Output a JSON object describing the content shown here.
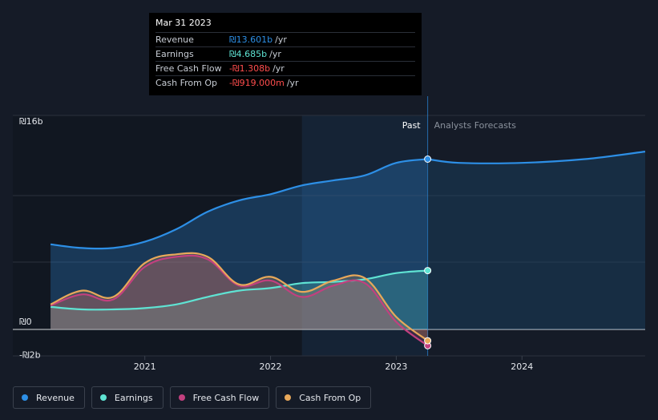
{
  "tooltip": {
    "date": "Mar 31 2023",
    "rows": [
      {
        "label": "Revenue",
        "value": "₪13.601b",
        "unit": "/yr",
        "color": "#2d8fe6"
      },
      {
        "label": "Earnings",
        "value": "₪4.685b",
        "unit": "/yr",
        "color": "#5fe3d3"
      },
      {
        "label": "Free Cash Flow",
        "value": "-₪1.308b",
        "unit": "/yr",
        "color": "#ff4d4d"
      },
      {
        "label": "Cash From Op",
        "value": "-₪919.000m",
        "unit": "/yr",
        "color": "#ff4d4d"
      }
    ]
  },
  "labels": {
    "past": "Past",
    "forecast": "Analysts Forecasts"
  },
  "legend": [
    {
      "label": "Revenue",
      "color": "#2d8fe6"
    },
    {
      "label": "Earnings",
      "color": "#5fe3d3"
    },
    {
      "label": "Free Cash Flow",
      "color": "#c2407f"
    },
    {
      "label": "Cash From Op",
      "color": "#e8a85a"
    }
  ],
  "chart_data": {
    "type": "line",
    "title": "",
    "xlabel": "",
    "ylabel": "",
    "ylim": [
      -2,
      16
    ],
    "yticks": [
      {
        "value": 16,
        "label": "₪16b"
      },
      {
        "value": 0,
        "label": "₪0"
      },
      {
        "value": -2,
        "label": "-₪2b"
      }
    ],
    "xticks": [
      {
        "value": 2021.0,
        "label": "2021"
      },
      {
        "value": 2022.0,
        "label": "2022"
      },
      {
        "value": 2023.0,
        "label": "2023"
      },
      {
        "value": 2024.0,
        "label": "2024"
      }
    ],
    "xlim": [
      2019.95,
      2024.98
    ],
    "past_end": 2023.25,
    "series": [
      {
        "name": "Revenue",
        "color": "#2d8fe6",
        "x": [
          2020.25,
          2020.5,
          2020.75,
          2021.0,
          2021.25,
          2021.5,
          2021.75,
          2022.0,
          2022.25,
          2022.5,
          2022.75,
          2023.0,
          2023.25
        ],
        "values": [
          6.8,
          6.5,
          6.5,
          7.0,
          8.0,
          9.4,
          10.3,
          10.8,
          11.5,
          11.9,
          12.3,
          13.3,
          13.6
        ],
        "forecast_x": [
          2023.25,
          2023.5,
          2024.0,
          2024.5,
          2024.98
        ],
        "forecast_values": [
          13.6,
          13.3,
          13.3,
          13.6,
          14.2
        ]
      },
      {
        "name": "Earnings",
        "color": "#5fe3d3",
        "x": [
          2020.25,
          2020.5,
          2020.75,
          2021.0,
          2021.25,
          2021.5,
          2021.75,
          2022.0,
          2022.25,
          2022.5,
          2022.75,
          2023.0,
          2023.25
        ],
        "values": [
          1.8,
          1.6,
          1.6,
          1.7,
          2.0,
          2.6,
          3.1,
          3.3,
          3.7,
          3.8,
          4.0,
          4.5,
          4.7
        ]
      },
      {
        "name": "Free Cash Flow",
        "color": "#c2407f",
        "x": [
          2020.25,
          2020.5,
          2020.75,
          2021.0,
          2021.25,
          2021.5,
          2021.75,
          2022.0,
          2022.25,
          2022.5,
          2022.75,
          2023.0,
          2023.25
        ],
        "values": [
          1.9,
          2.8,
          2.4,
          5.0,
          5.8,
          5.6,
          3.5,
          3.9,
          2.6,
          3.5,
          3.7,
          0.6,
          -1.3
        ]
      },
      {
        "name": "Cash From Op",
        "color": "#e8a85a",
        "x": [
          2020.25,
          2020.5,
          2020.75,
          2021.0,
          2021.25,
          2021.5,
          2021.75,
          2022.0,
          2022.25,
          2022.5,
          2022.75,
          2023.0,
          2023.25
        ],
        "values": [
          2.0,
          3.1,
          2.6,
          5.3,
          6.0,
          5.8,
          3.6,
          4.2,
          3.0,
          3.9,
          4.1,
          1.0,
          -0.9
        ]
      }
    ]
  }
}
